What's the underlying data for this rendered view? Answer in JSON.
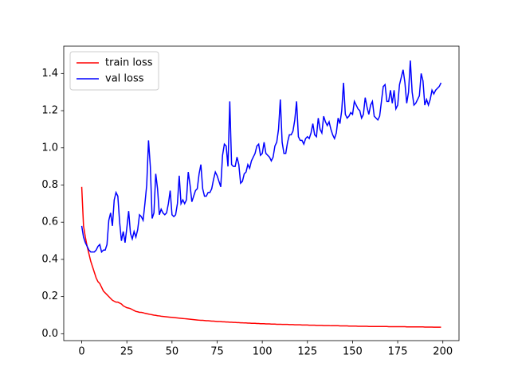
{
  "chart_data": {
    "type": "line",
    "x": [
      0,
      1,
      2,
      3,
      4,
      5,
      6,
      7,
      8,
      9,
      10,
      11,
      12,
      13,
      14,
      15,
      16,
      17,
      18,
      19,
      20,
      21,
      22,
      23,
      24,
      25,
      26,
      27,
      28,
      29,
      30,
      31,
      32,
      33,
      34,
      35,
      36,
      37,
      38,
      39,
      40,
      41,
      42,
      43,
      44,
      45,
      46,
      47,
      48,
      49,
      50,
      51,
      52,
      53,
      54,
      55,
      56,
      57,
      58,
      59,
      60,
      61,
      62,
      63,
      64,
      65,
      66,
      67,
      68,
      69,
      70,
      71,
      72,
      73,
      74,
      75,
      76,
      77,
      78,
      79,
      80,
      81,
      82,
      83,
      84,
      85,
      86,
      87,
      88,
      89,
      90,
      91,
      92,
      93,
      94,
      95,
      96,
      97,
      98,
      99,
      100,
      101,
      102,
      103,
      104,
      105,
      106,
      107,
      108,
      109,
      110,
      111,
      112,
      113,
      114,
      115,
      116,
      117,
      118,
      119,
      120,
      121,
      122,
      123,
      124,
      125,
      126,
      127,
      128,
      129,
      130,
      131,
      132,
      133,
      134,
      135,
      136,
      137,
      138,
      139,
      140,
      141,
      142,
      143,
      144,
      145,
      146,
      147,
      148,
      149,
      150,
      151,
      152,
      153,
      154,
      155,
      156,
      157,
      158,
      159,
      160,
      161,
      162,
      163,
      164,
      165,
      166,
      167,
      168,
      169,
      170,
      171,
      172,
      173,
      174,
      175,
      176,
      177,
      178,
      179,
      180,
      181,
      182,
      183,
      184,
      185,
      186,
      187,
      188,
      189,
      190,
      191,
      192,
      193,
      194,
      195,
      196,
      197,
      198,
      199
    ],
    "series": [
      {
        "name": "train loss",
        "color": "#ff0000",
        "values": [
          0.79,
          0.58,
          0.52,
          0.47,
          0.43,
          0.39,
          0.36,
          0.33,
          0.3,
          0.28,
          0.27,
          0.25,
          0.23,
          0.22,
          0.21,
          0.2,
          0.19,
          0.18,
          0.175,
          0.17,
          0.17,
          0.165,
          0.16,
          0.15,
          0.145,
          0.14,
          0.138,
          0.135,
          0.13,
          0.125,
          0.12,
          0.118,
          0.115,
          0.115,
          0.113,
          0.11,
          0.108,
          0.106,
          0.104,
          0.102,
          0.1,
          0.099,
          0.097,
          0.096,
          0.094,
          0.093,
          0.092,
          0.091,
          0.09,
          0.089,
          0.088,
          0.087,
          0.086,
          0.085,
          0.084,
          0.083,
          0.082,
          0.081,
          0.08,
          0.079,
          0.078,
          0.077,
          0.076,
          0.075,
          0.074,
          0.073,
          0.072,
          0.072,
          0.071,
          0.07,
          0.07,
          0.069,
          0.068,
          0.068,
          0.067,
          0.066,
          0.066,
          0.065,
          0.064,
          0.064,
          0.063,
          0.063,
          0.062,
          0.062,
          0.061,
          0.061,
          0.06,
          0.06,
          0.059,
          0.059,
          0.058,
          0.058,
          0.057,
          0.057,
          0.056,
          0.056,
          0.056,
          0.055,
          0.055,
          0.054,
          0.054,
          0.054,
          0.053,
          0.053,
          0.053,
          0.052,
          0.052,
          0.052,
          0.051,
          0.051,
          0.051,
          0.05,
          0.05,
          0.05,
          0.05,
          0.049,
          0.049,
          0.049,
          0.048,
          0.048,
          0.048,
          0.048,
          0.047,
          0.047,
          0.047,
          0.047,
          0.046,
          0.046,
          0.046,
          0.046,
          0.045,
          0.045,
          0.045,
          0.045,
          0.044,
          0.044,
          0.044,
          0.044,
          0.043,
          0.043,
          0.043,
          0.043,
          0.043,
          0.042,
          0.042,
          0.042,
          0.042,
          0.042,
          0.041,
          0.041,
          0.041,
          0.041,
          0.041,
          0.04,
          0.04,
          0.04,
          0.04,
          0.04,
          0.04,
          0.039,
          0.039,
          0.039,
          0.039,
          0.039,
          0.039,
          0.039,
          0.039,
          0.039,
          0.039,
          0.039,
          0.038,
          0.038,
          0.038,
          0.038,
          0.038,
          0.038,
          0.038,
          0.038,
          0.038,
          0.038,
          0.037,
          0.037,
          0.037,
          0.037,
          0.037,
          0.037,
          0.037,
          0.037,
          0.037,
          0.037,
          0.036,
          0.036,
          0.036,
          0.036,
          0.036,
          0.035,
          0.035,
          0.035,
          0.035,
          0.035
        ]
      },
      {
        "name": "val loss",
        "color": "#0000ff",
        "values": [
          0.58,
          0.52,
          0.49,
          0.47,
          0.45,
          0.44,
          0.44,
          0.44,
          0.45,
          0.47,
          0.48,
          0.44,
          0.45,
          0.45,
          0.48,
          0.61,
          0.65,
          0.58,
          0.72,
          0.76,
          0.74,
          0.6,
          0.5,
          0.55,
          0.49,
          0.57,
          0.66,
          0.54,
          0.51,
          0.55,
          0.52,
          0.56,
          0.64,
          0.63,
          0.61,
          0.7,
          0.8,
          1.04,
          0.9,
          0.62,
          0.65,
          0.86,
          0.78,
          0.64,
          0.67,
          0.65,
          0.64,
          0.65,
          0.7,
          0.77,
          0.64,
          0.63,
          0.64,
          0.7,
          0.85,
          0.7,
          0.72,
          0.7,
          0.72,
          0.87,
          0.8,
          0.71,
          0.74,
          0.77,
          0.78,
          0.86,
          0.91,
          0.78,
          0.74,
          0.74,
          0.76,
          0.76,
          0.78,
          0.83,
          0.87,
          0.85,
          0.82,
          0.79,
          0.96,
          1.02,
          1.01,
          0.9,
          1.25,
          0.91,
          0.9,
          0.9,
          0.95,
          0.91,
          0.81,
          0.82,
          0.86,
          0.87,
          0.91,
          0.89,
          0.93,
          0.95,
          0.97,
          1.01,
          1.02,
          0.96,
          0.97,
          1.03,
          0.97,
          0.96,
          0.95,
          0.93,
          0.95,
          1.01,
          1.03,
          1.1,
          1.26,
          1.03,
          0.97,
          0.97,
          1.03,
          1.07,
          1.07,
          1.09,
          1.15,
          1.25,
          1.06,
          1.04,
          1.04,
          1.02,
          1.05,
          1.06,
          1.05,
          1.08,
          1.13,
          1.07,
          1.06,
          1.16,
          1.1,
          1.08,
          1.17,
          1.14,
          1.12,
          1.14,
          1.1,
          1.07,
          1.05,
          1.08,
          1.16,
          1.13,
          1.2,
          1.35,
          1.18,
          1.16,
          1.17,
          1.19,
          1.18,
          1.25,
          1.23,
          1.21,
          1.2,
          1.16,
          1.18,
          1.27,
          1.22,
          1.18,
          1.23,
          1.25,
          1.17,
          1.16,
          1.15,
          1.17,
          1.25,
          1.33,
          1.34,
          1.25,
          1.25,
          1.31,
          1.24,
          1.31,
          1.21,
          1.23,
          1.34,
          1.38,
          1.42,
          1.35,
          1.24,
          1.3,
          1.47,
          1.3,
          1.23,
          1.24,
          1.26,
          1.28,
          1.4,
          1.36,
          1.23,
          1.26,
          1.23,
          1.26,
          1.31,
          1.29,
          1.31,
          1.32,
          1.33,
          1.35
        ]
      }
    ],
    "xlim": [
      -9.95,
      208.95
    ],
    "xticks": [
      0,
      25,
      50,
      75,
      100,
      125,
      150,
      175,
      200
    ],
    "ylim": [
      -0.037,
      1.547
    ],
    "yticks": [
      {
        "value": 0,
        "label": "0.0"
      },
      0.2,
      0.4,
      0.6,
      0.8,
      {
        "value": 1,
        "label": "1.0"
      },
      1.2,
      1.4
    ],
    "grid": false,
    "legend": "upper-left"
  }
}
